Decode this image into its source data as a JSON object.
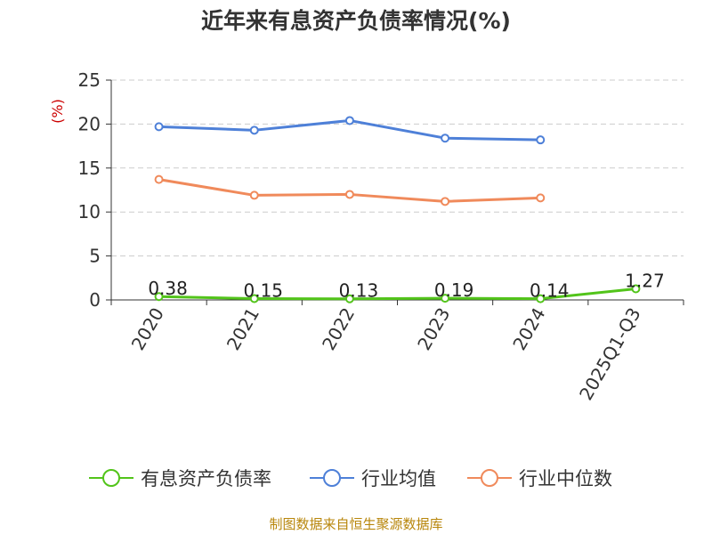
{
  "title": "近年来有息资产负债率情况(%)",
  "source": "制图数据来自恒生聚源数据库",
  "chart_data": {
    "type": "line",
    "title": "近年来有息资产负债率情况(%)",
    "ylabel": "(%)",
    "xlabel": "",
    "ylim": [
      0,
      25
    ],
    "yticks": [
      0,
      5,
      10,
      15,
      20,
      25
    ],
    "grid": true,
    "legend_position": "bottom",
    "categories": [
      "2020",
      "2021",
      "2022",
      "2023",
      "2024",
      "2025Q1-Q3"
    ],
    "series": [
      {
        "name": "有息资产负债率",
        "color": "#52c41a",
        "values": [
          0.38,
          0.15,
          0.13,
          0.19,
          0.14,
          1.27
        ],
        "labels": [
          "0.38",
          "0.15",
          "0.13",
          "0.19",
          "0.14",
          "1.27"
        ]
      },
      {
        "name": "行业均值",
        "color": "#4e80d8",
        "values": [
          19.7,
          19.3,
          20.4,
          18.4,
          18.2,
          null
        ]
      },
      {
        "name": "行业中位数",
        "color": "#f08a5b",
        "values": [
          13.7,
          11.9,
          12.0,
          11.2,
          11.6,
          null
        ]
      }
    ]
  }
}
